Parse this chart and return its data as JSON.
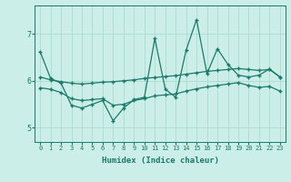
{
  "xlabel": "Humidex (Indice chaleur)",
  "background_color": "#cceee8",
  "grid_color": "#aaddcc",
  "line_color": "#1a7a6a",
  "xlim": [
    -0.5,
    23.5
  ],
  "ylim": [
    4.7,
    7.6
  ],
  "yticks": [
    5,
    6,
    7
  ],
  "xticks": [
    0,
    1,
    2,
    3,
    4,
    5,
    6,
    7,
    8,
    9,
    10,
    11,
    12,
    13,
    14,
    15,
    16,
    17,
    18,
    19,
    20,
    21,
    22,
    23
  ],
  "series1": [
    6.62,
    6.05,
    5.95,
    5.48,
    5.42,
    5.5,
    5.58,
    5.15,
    5.42,
    5.6,
    5.65,
    6.9,
    5.82,
    5.65,
    6.65,
    7.3,
    6.15,
    6.68,
    6.35,
    6.12,
    6.08,
    6.12,
    6.25,
    6.08
  ],
  "series2": [
    6.08,
    6.02,
    5.98,
    5.95,
    5.93,
    5.95,
    5.97,
    5.98,
    6.0,
    6.02,
    6.05,
    6.07,
    6.09,
    6.11,
    6.14,
    6.17,
    6.2,
    6.22,
    6.24,
    6.26,
    6.24,
    6.22,
    6.24,
    6.08
  ],
  "series3": [
    5.85,
    5.82,
    5.75,
    5.62,
    5.58,
    5.6,
    5.62,
    5.48,
    5.5,
    5.58,
    5.62,
    5.68,
    5.7,
    5.72,
    5.78,
    5.83,
    5.87,
    5.9,
    5.93,
    5.96,
    5.9,
    5.86,
    5.88,
    5.78
  ]
}
